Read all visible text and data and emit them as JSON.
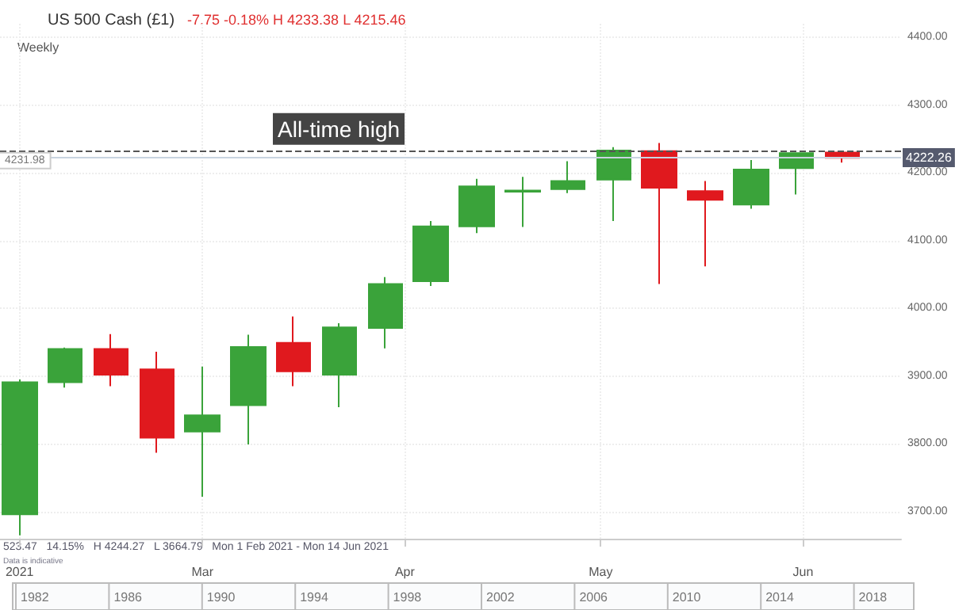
{
  "chart_data": {
    "type": "candlestick",
    "title": "US 500 Cash (£1)",
    "subtitle": "-7.75 -0.18% H 4233.38 L 4215.46",
    "x": [
      "2021-02-01",
      "2021-02-08",
      "2021-02-15",
      "2021-02-22",
      "2021-03-01",
      "2021-03-08",
      "2021-03-15",
      "2021-03-22",
      "2021-03-29",
      "2021-04-05",
      "2021-04-12",
      "2021-04-19",
      "2021-04-26",
      "2021-05-03",
      "2021-05-10",
      "2021-05-17",
      "2021-05-24",
      "2021-05-31",
      "2021-06-07"
    ],
    "ohlc": [
      [
        3696,
        3895,
        3665,
        3891
      ],
      [
        3891,
        3942,
        3883,
        3940
      ],
      [
        3940,
        3962,
        3885,
        3902
      ],
      [
        3910,
        3936,
        3787,
        3809
      ],
      [
        3818,
        3914,
        3722,
        3842
      ],
      [
        3857,
        3961,
        3799,
        3943
      ],
      [
        3949,
        3988,
        3885,
        3907
      ],
      [
        3902,
        3978,
        3854,
        3972
      ],
      [
        3971,
        4046,
        3941,
        4036
      ],
      [
        4040,
        4129,
        4033,
        4121
      ],
      [
        4121,
        4191,
        4111,
        4180
      ],
      [
        4172,
        4194,
        4120,
        4174
      ],
      [
        4176,
        4217,
        4170,
        4188
      ],
      [
        4190,
        4238,
        4129,
        4233
      ],
      [
        4232,
        4244,
        4036,
        4178
      ],
      [
        4173,
        4188,
        4062,
        4160
      ],
      [
        4153,
        4219,
        4147,
        4205
      ],
      [
        4207,
        4230,
        4168,
        4229
      ],
      [
        4230,
        4233,
        4215,
        4222
      ]
    ],
    "colors": [
      "#3aa33a",
      "#3aa33a",
      "#e0191e",
      "#e0191e",
      "#3aa33a",
      "#3aa33a",
      "#e0191e",
      "#3aa33a",
      "#3aa33a",
      "#3aa33a",
      "#3aa33a",
      "#3aa33a",
      "#3aa33a",
      "#3aa33a",
      "#e0191e",
      "#e0191e",
      "#3aa33a",
      "#3aa33a",
      "#e0191e"
    ],
    "xlim": [
      "2021-01-29",
      "2021-06-16"
    ],
    "xticks": [
      {
        "value": "2021-02-01",
        "label": "2021"
      },
      {
        "value": "2021-03-01",
        "label": "Mar"
      },
      {
        "value": "2021-04-01",
        "label": "Apr"
      },
      {
        "value": "2021-05-01",
        "label": "May"
      },
      {
        "value": "2021-06-01",
        "label": "Jun"
      }
    ],
    "ylim": [
      3660,
      4420
    ],
    "yticks": [
      {
        "value": 3700,
        "label": "3700.00"
      },
      {
        "value": 3800,
        "label": "3800.00"
      },
      {
        "value": 3900,
        "label": "3900.00"
      },
      {
        "value": 4000,
        "label": "4000.00"
      },
      {
        "value": 4100,
        "label": "4100.00"
      },
      {
        "value": 4200,
        "label": "4200.00"
      },
      {
        "value": 4300,
        "label": "4300.00"
      },
      {
        "value": 4400,
        "label": "4400.00"
      }
    ],
    "grid": true,
    "ref_lines": [
      {
        "axis": "y",
        "value": 4231.98,
        "label": "4231.98",
        "line_style": "dashed",
        "color": "#555555"
      },
      {
        "axis": "y",
        "value": 4222.26,
        "label": "4222.26",
        "line_style": "solid",
        "color": "#c8d4e0"
      }
    ],
    "annotations": [
      {
        "text": "All-time high",
        "y": 4231.98
      },
      "Weekly",
      "523.47   14.15%   H 4244.27   L 3664.79   Mon 1 Feb 2021 - Mon 14 Jun 2021",
      "Data is indicative",
      "1982",
      "1986",
      "1990",
      "1994",
      "1998",
      "2002",
      "2006",
      "2010",
      "2014",
      "2018"
    ]
  }
}
